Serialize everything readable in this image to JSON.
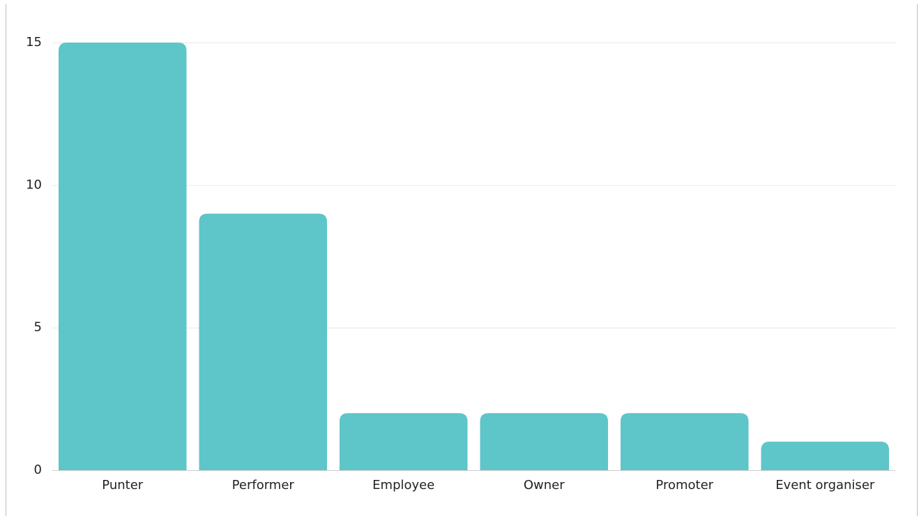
{
  "chart_data": {
    "type": "bar",
    "categories": [
      "Punter",
      "Performer",
      "Employee",
      "Owner",
      "Promoter",
      "Event organiser"
    ],
    "values": [
      15,
      9,
      2,
      2,
      2,
      1
    ],
    "color": "#5ec5c9",
    "ylim": [
      0,
      15
    ],
    "yticks": [
      0,
      5,
      10,
      15
    ],
    "grid": true
  }
}
